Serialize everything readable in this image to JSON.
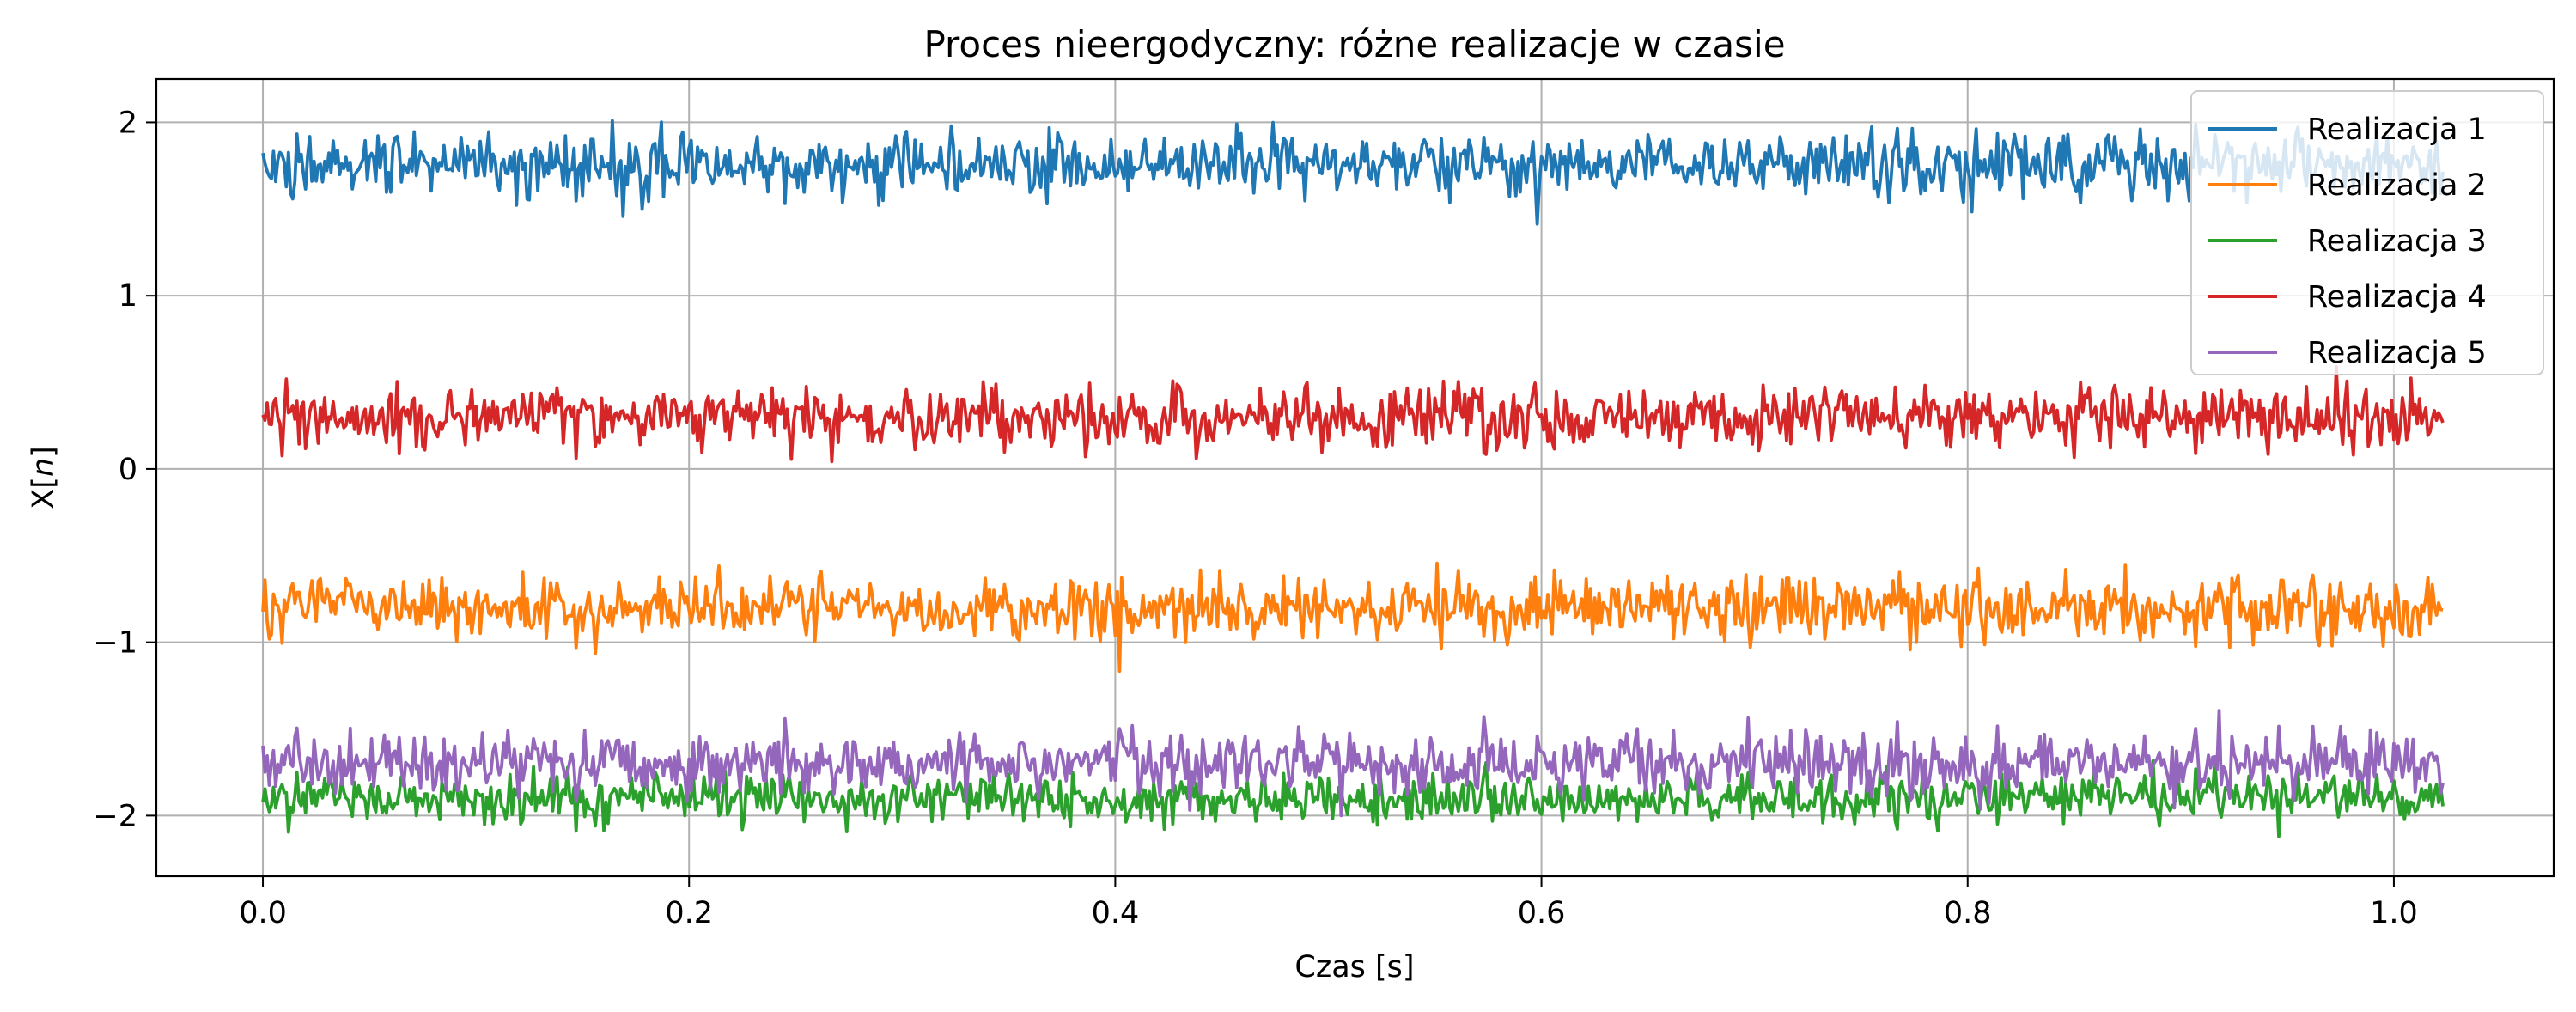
{
  "chart_data": {
    "type": "line",
    "title": "Proces nieergodyczny: różne realizacje w czasie",
    "xlabel": "Czas [s]",
    "ylabel": "X[n]",
    "ylabel_parts": {
      "base": "X[",
      "italic": "n",
      "close": "]"
    },
    "xlim": [
      -0.05,
      1.075
    ],
    "ylim": [
      -2.35,
      2.25
    ],
    "xticks": [
      0.0,
      0.2,
      0.4,
      0.6,
      0.8,
      1.0
    ],
    "xtick_labels": [
      "0.0",
      "0.2",
      "0.4",
      "0.6",
      "0.8",
      "1.0"
    ],
    "yticks": [
      -2,
      -1,
      0,
      1,
      2
    ],
    "ytick_labels": [
      "−2",
      "−1",
      "0",
      "1",
      "2"
    ],
    "grid": true,
    "legend_position": "top-right",
    "x_range": [
      0.0,
      1.023
    ],
    "samples_per_series": 1024,
    "series": [
      {
        "name": "Realizacja 1",
        "color": "#1f77b4",
        "mean": 1.76,
        "std": 0.09
      },
      {
        "name": "Realizacja 2",
        "color": "#ff7f0e",
        "mean": -0.8,
        "std": 0.09
      },
      {
        "name": "Realizacja 3",
        "color": "#2ca02c",
        "mean": -1.9,
        "std": 0.07
      },
      {
        "name": "Realizacja 4",
        "color": "#d62728",
        "mean": 0.3,
        "std": 0.09
      },
      {
        "name": "Realizacja 5",
        "color": "#9467bd",
        "mean": -1.7,
        "std": 0.09
      }
    ]
  }
}
